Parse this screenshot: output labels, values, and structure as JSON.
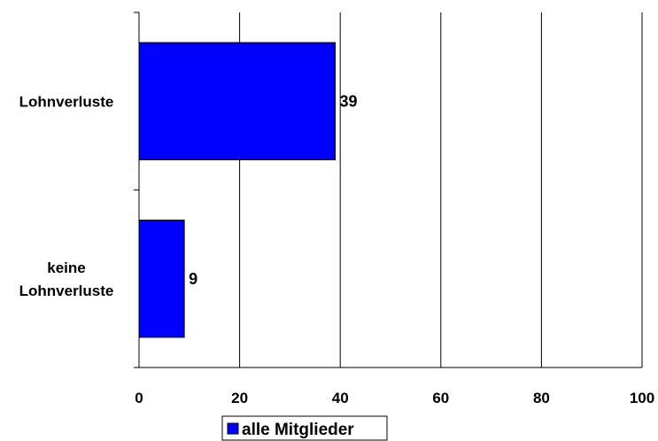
{
  "chart_data": {
    "type": "bar",
    "orientation": "horizontal",
    "categories": [
      "Lohnverluste",
      "keine Lohnverluste"
    ],
    "category_lines": [
      [
        "Lohnverluste"
      ],
      [
        "keine",
        "Lohnverluste"
      ]
    ],
    "series": [
      {
        "name": "alle Mitglieder",
        "values": [
          39,
          9
        ],
        "color": "#0000ff"
      }
    ],
    "data_labels": [
      "39",
      "9"
    ],
    "xlim": [
      0,
      100
    ],
    "xticks": [
      0,
      20,
      40,
      60,
      80,
      100
    ],
    "xtick_labels": [
      "0",
      "20",
      "40",
      "60",
      "80",
      "100"
    ],
    "grid": true,
    "legend": "bottom-center",
    "title": "",
    "xlabel": "",
    "ylabel": ""
  }
}
